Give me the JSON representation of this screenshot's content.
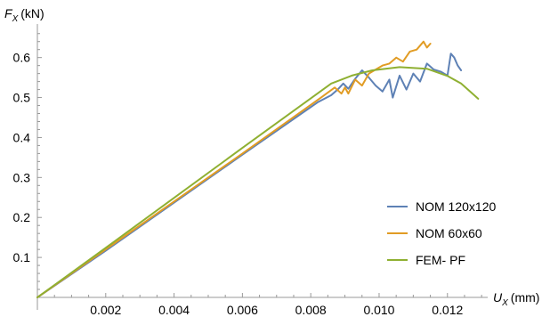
{
  "chart_data": {
    "type": "line",
    "ylabel": {
      "symbol": "F",
      "sub": "X",
      "unit": "(kN)"
    },
    "xlabel": {
      "symbol": "U",
      "sub": "X",
      "unit": "(mm)"
    },
    "xlim": [
      0,
      0.0131
    ],
    "ylim": [
      0,
      0.675
    ],
    "xticks": [
      "0.002",
      "0.004",
      "0.006",
      "0.008",
      "0.010",
      "0.012"
    ],
    "xtick_values": [
      0.002,
      0.004,
      0.006,
      0.008,
      0.01,
      0.012
    ],
    "yticks": [
      "0.1",
      "0.2",
      "0.3",
      "0.4",
      "0.5",
      "0.6"
    ],
    "ytick_values": [
      0.1,
      0.2,
      0.3,
      0.4,
      0.5,
      0.6
    ],
    "legend_position": "bottom-right",
    "series": [
      {
        "name": "NOM 120x120",
        "color": "#5e81b5",
        "x": [
          0,
          0.002,
          0.004,
          0.006,
          0.0082,
          0.0086,
          0.0088,
          0.00895,
          0.0091,
          0.0093,
          0.0095,
          0.0097,
          0.0099,
          0.0101,
          0.0103,
          0.0104,
          0.0106,
          0.0108,
          0.011,
          0.0112,
          0.0114,
          0.0116,
          0.0118,
          0.012,
          0.0121,
          0.0122,
          0.0123,
          0.0124
        ],
        "y": [
          0,
          0.117,
          0.237,
          0.357,
          0.488,
          0.506,
          0.521,
          0.535,
          0.522,
          0.547,
          0.568,
          0.55,
          0.53,
          0.515,
          0.545,
          0.5,
          0.555,
          0.52,
          0.56,
          0.54,
          0.585,
          0.57,
          0.565,
          0.555,
          0.61,
          0.6,
          0.58,
          0.568
        ]
      },
      {
        "name": "NOM 60x60",
        "color": "#e19c24",
        "x": [
          0,
          0.002,
          0.004,
          0.006,
          0.0083,
          0.0087,
          0.0089,
          0.009,
          0.0091,
          0.0093,
          0.0095,
          0.0097,
          0.0099,
          0.0101,
          0.0103,
          0.0105,
          0.0107,
          0.0109,
          0.0111,
          0.0113,
          0.0114,
          0.0115
        ],
        "y": [
          0,
          0.12,
          0.24,
          0.36,
          0.5,
          0.525,
          0.51,
          0.525,
          0.51,
          0.545,
          0.53,
          0.56,
          0.57,
          0.58,
          0.585,
          0.6,
          0.59,
          0.615,
          0.62,
          0.64,
          0.625,
          0.635
        ]
      },
      {
        "name": "FEM- PF",
        "color": "#8fb032",
        "x": [
          0,
          0.002,
          0.004,
          0.006,
          0.0086,
          0.0092,
          0.0098,
          0.0106,
          0.0114,
          0.012,
          0.0124,
          0.0129
        ],
        "y": [
          0,
          0.124,
          0.249,
          0.374,
          0.535,
          0.555,
          0.568,
          0.576,
          0.572,
          0.554,
          0.535,
          0.497
        ]
      }
    ]
  }
}
